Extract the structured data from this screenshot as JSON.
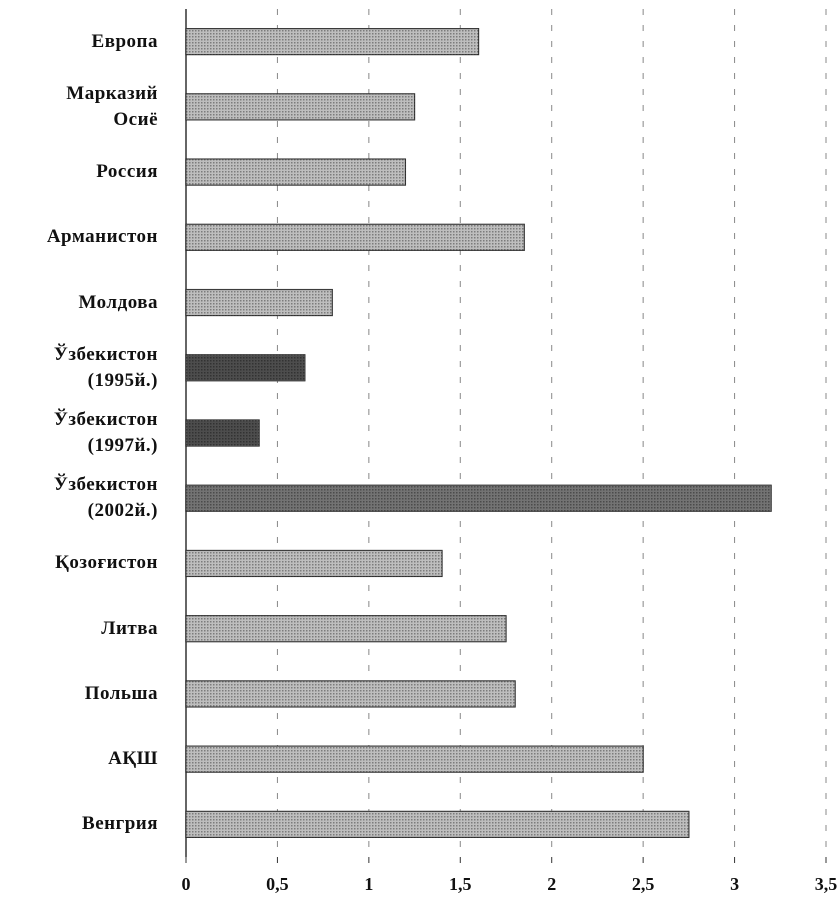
{
  "chart_data": {
    "type": "barh",
    "categories": [
      "Европа",
      "Марказий\nОсиё",
      "Россия",
      "Арманистон",
      "Молдова",
      "Ўзбекистон\n(1995й.)",
      "Ўзбекистон\n(1997й.)",
      "Ўзбекистон\n(2002й.)",
      "Қозоғистон",
      "Литва",
      "Польша",
      "АҚШ",
      "Венгрия"
    ],
    "values": [
      1.6,
      1.25,
      1.2,
      1.85,
      0.8,
      0.65,
      0.4,
      3.2,
      1.4,
      1.75,
      1.8,
      2.5,
      2.75
    ],
    "colors": [
      "#a8a8a8",
      "#a8a8a8",
      "#a8a8a8",
      "#a8a8a8",
      "#a8a8a8",
      "#111111",
      "#111111",
      "#444444",
      "#a8a8a8",
      "#a8a8a8",
      "#a8a8a8",
      "#a8a8a8",
      "#a8a8a8"
    ],
    "xlim": [
      0,
      3.5
    ],
    "xticks": [
      0,
      {
        "value": 0.5,
        "label": "0,5"
      },
      1,
      {
        "value": 1.5,
        "label": "1,5"
      },
      2,
      {
        "value": 2.5,
        "label": "2,5"
      },
      3,
      {
        "value": 3.5,
        "label": "3,5"
      }
    ],
    "grid": true
  }
}
